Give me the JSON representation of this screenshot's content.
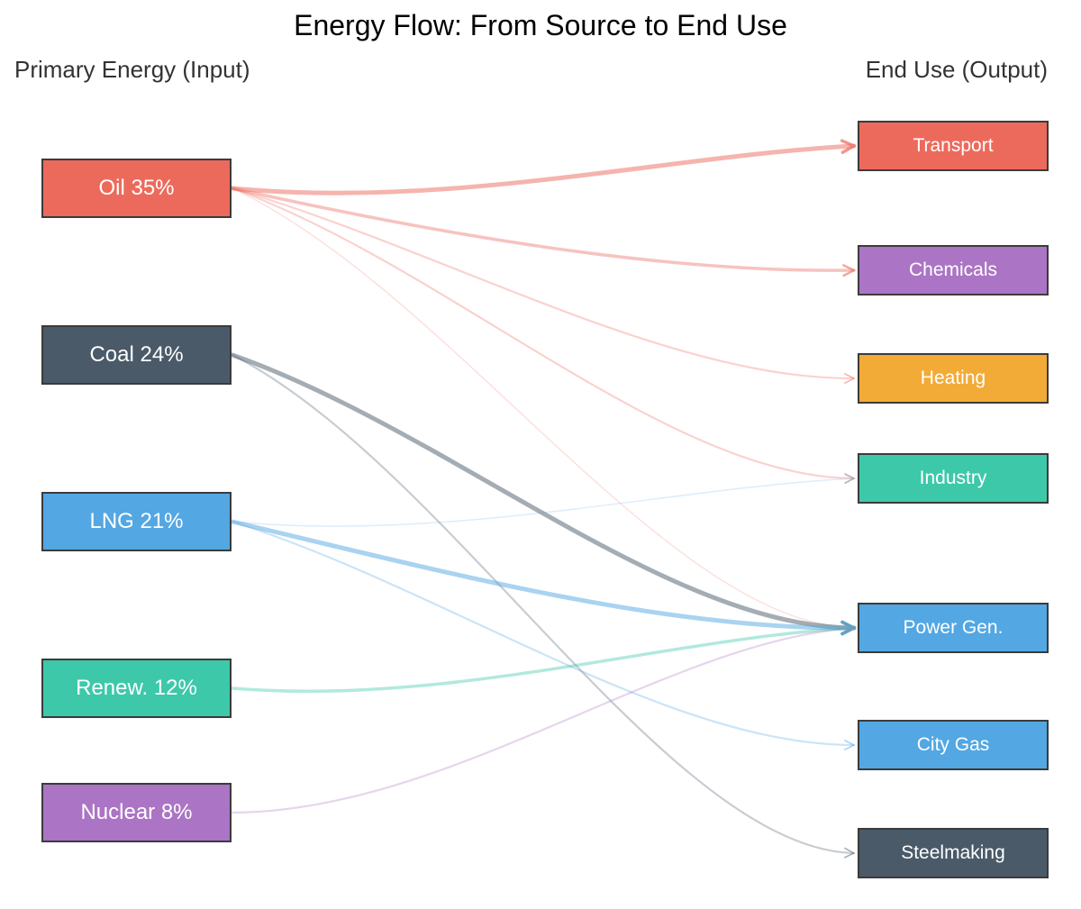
{
  "title": "Energy Flow: From Source to End Use",
  "headings": {
    "input": "Primary Energy (Input)",
    "output": "End Use (Output)"
  },
  "sources": [
    {
      "id": "oil",
      "label": "Oil 35%",
      "color": "#ec6a5c"
    },
    {
      "id": "coal",
      "label": "Coal 24%",
      "color": "#4a5a69"
    },
    {
      "id": "lng",
      "label": "LNG 21%",
      "color": "#53a7e2"
    },
    {
      "id": "renew",
      "label": "Renew. 12%",
      "color": "#3dc8aa"
    },
    {
      "id": "nuclear",
      "label": "Nuclear 8%",
      "color": "#ab74c4"
    }
  ],
  "targets": [
    {
      "id": "transport",
      "label": "Transport",
      "color": "#ec6a5c"
    },
    {
      "id": "chemicals",
      "label": "Chemicals",
      "color": "#ab74c4"
    },
    {
      "id": "heating",
      "label": "Heating",
      "color": "#f2ab36"
    },
    {
      "id": "industry",
      "label": "Industry",
      "color": "#3dc8aa"
    },
    {
      "id": "power",
      "label": "Power Gen.",
      "color": "#53a7e2"
    },
    {
      "id": "citygas",
      "label": "City Gas",
      "color": "#53a7e2"
    },
    {
      "id": "steel",
      "label": "Steelmaking",
      "color": "#4a5a69"
    }
  ],
  "flows": [
    {
      "from": "oil",
      "to": "transport",
      "strength": "heavy"
    },
    {
      "from": "oil",
      "to": "chemicals",
      "strength": "medium"
    },
    {
      "from": "oil",
      "to": "heating",
      "strength": "light"
    },
    {
      "from": "oil",
      "to": "industry",
      "strength": "light"
    },
    {
      "from": "oil",
      "to": "power",
      "strength": "faint"
    },
    {
      "from": "coal",
      "to": "power",
      "strength": "heavy"
    },
    {
      "from": "coal",
      "to": "steel",
      "strength": "light"
    },
    {
      "from": "lng",
      "to": "industry",
      "strength": "faint"
    },
    {
      "from": "lng",
      "to": "power",
      "strength": "heavy"
    },
    {
      "from": "lng",
      "to": "citygas",
      "strength": "light"
    },
    {
      "from": "renew",
      "to": "power",
      "strength": "medium"
    },
    {
      "from": "nuclear",
      "to": "power",
      "strength": "light"
    }
  ]
}
